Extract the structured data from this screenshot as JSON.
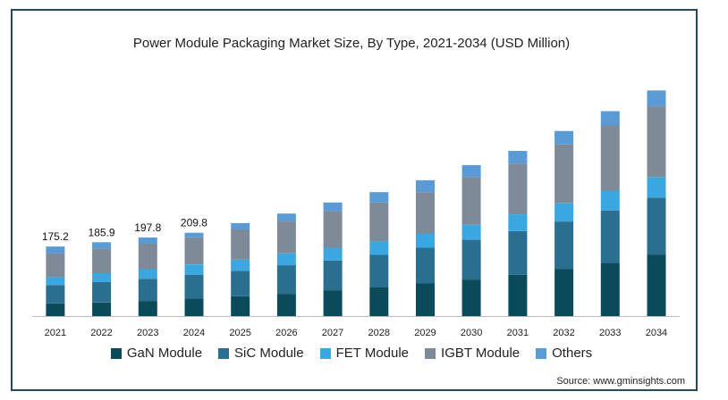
{
  "chart_data": {
    "type": "bar",
    "stacked": true,
    "title": "Power Module Packaging Market Size, By Type, 2021-2034 (USD Million)",
    "xlabel": "",
    "ylabel": "",
    "categories": [
      "2021",
      "2022",
      "2023",
      "2024",
      "2025",
      "2026",
      "2027",
      "2028",
      "2029",
      "2030",
      "2031",
      "2032",
      "2033",
      "2034"
    ],
    "series": [
      {
        "name": "GaN Module",
        "color": "#0b4a5a",
        "values": [
          32,
          34,
          38,
          44,
          50,
          56,
          64,
          72,
          82,
          92,
          104,
          118,
          134,
          154
        ]
      },
      {
        "name": "SiC Module",
        "color": "#2a6f8f",
        "values": [
          46,
          52,
          56,
          60,
          64,
          72,
          76,
          82,
          90,
          100,
          110,
          120,
          132,
          144
        ]
      },
      {
        "name": "FET Module",
        "color": "#3aa7e0",
        "values": [
          20,
          22,
          24,
          26,
          28,
          30,
          32,
          34,
          36,
          38,
          42,
          46,
          50,
          52
        ]
      },
      {
        "name": "IGBT Module",
        "color": "#7f8a98",
        "values": [
          60,
          62,
          64,
          68,
          76,
          80,
          92,
          98,
          104,
          120,
          128,
          148,
          164,
          178
        ]
      },
      {
        "name": "Others",
        "color": "#5b9bd5",
        "values": [
          17.2,
          15.9,
          15.8,
          11.8,
          16,
          20,
          22,
          26,
          30,
          30,
          32,
          34,
          36,
          40
        ]
      }
    ],
    "data_labels": [
      "175.2",
      "185.9",
      "197.8",
      "209.8"
    ],
    "ylim": [
      0,
      580
    ],
    "grid": false,
    "legend": "bottom"
  },
  "source": "Source: www.gminsights.com"
}
